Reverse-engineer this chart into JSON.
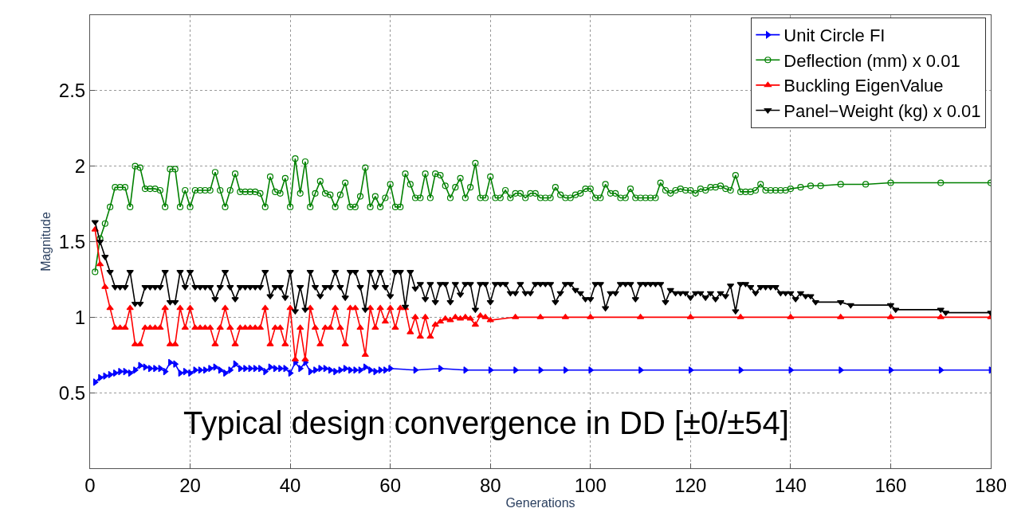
{
  "chart_data": {
    "type": "line",
    "xlabel": "Generations",
    "ylabel": "Magnitude",
    "xlim": [
      0,
      180
    ],
    "xticks": [
      0,
      20,
      40,
      60,
      80,
      100,
      120,
      140,
      160,
      180
    ],
    "ylim": [
      0,
      3
    ],
    "yticks": [
      0.5,
      1,
      1.5,
      2,
      2.5
    ],
    "grid": true,
    "legend": "top right",
    "line_style": "solid",
    "annotations": [
      "Typical design convergence in DD [±0/±54]"
    ],
    "series": [
      {
        "name": "Unit Circle FI",
        "color": "#0000ff",
        "marker": "triangle-right",
        "x": [
          1,
          2,
          3,
          4,
          5,
          6,
          7,
          8,
          9,
          10,
          11,
          12,
          13,
          14,
          15,
          16,
          17,
          18,
          19,
          20,
          21,
          22,
          23,
          24,
          25,
          26,
          27,
          28,
          29,
          30,
          31,
          32,
          33,
          34,
          35,
          36,
          37,
          38,
          39,
          40,
          41,
          42,
          43,
          44,
          45,
          46,
          47,
          48,
          49,
          50,
          51,
          52,
          53,
          54,
          55,
          56,
          57,
          58,
          59,
          60,
          65,
          70,
          75,
          80,
          85,
          90,
          95,
          100,
          110,
          120,
          130,
          140,
          150,
          160,
          170,
          180
        ],
        "values": [
          0.57,
          0.6,
          0.61,
          0.62,
          0.63,
          0.64,
          0.64,
          0.63,
          0.65,
          0.68,
          0.67,
          0.66,
          0.66,
          0.66,
          0.64,
          0.7,
          0.69,
          0.63,
          0.64,
          0.63,
          0.65,
          0.65,
          0.65,
          0.66,
          0.67,
          0.65,
          0.63,
          0.65,
          0.69,
          0.66,
          0.66,
          0.66,
          0.66,
          0.66,
          0.64,
          0.67,
          0.66,
          0.66,
          0.66,
          0.63,
          0.7,
          0.66,
          0.7,
          0.64,
          0.65,
          0.66,
          0.66,
          0.65,
          0.64,
          0.65,
          0.66,
          0.65,
          0.65,
          0.65,
          0.67,
          0.65,
          0.64,
          0.65,
          0.65,
          0.66,
          0.65,
          0.66,
          0.65,
          0.65,
          0.65,
          0.65,
          0.65,
          0.65,
          0.65,
          0.65,
          0.65,
          0.65,
          0.65,
          0.65,
          0.65,
          0.65
        ]
      },
      {
        "name": "Deflection (mm) x 0.01",
        "color": "#008000",
        "marker": "circle-open",
        "x": [
          1,
          2,
          3,
          4,
          5,
          6,
          7,
          8,
          9,
          10,
          11,
          12,
          13,
          14,
          15,
          16,
          17,
          18,
          19,
          20,
          21,
          22,
          23,
          24,
          25,
          26,
          27,
          28,
          29,
          30,
          31,
          32,
          33,
          34,
          35,
          36,
          37,
          38,
          39,
          40,
          41,
          42,
          43,
          44,
          45,
          46,
          47,
          48,
          49,
          50,
          51,
          52,
          53,
          54,
          55,
          56,
          57,
          58,
          59,
          60,
          61,
          62,
          63,
          64,
          65,
          66,
          67,
          68,
          69,
          70,
          71,
          72,
          73,
          74,
          75,
          76,
          77,
          78,
          79,
          80,
          81,
          82,
          83,
          84,
          85,
          86,
          87,
          88,
          89,
          90,
          91,
          92,
          93,
          94,
          95,
          96,
          97,
          98,
          99,
          100,
          101,
          102,
          103,
          104,
          105,
          106,
          107,
          108,
          109,
          110,
          111,
          112,
          113,
          114,
          115,
          116,
          117,
          118,
          119,
          120,
          121,
          122,
          123,
          124,
          125,
          126,
          127,
          128,
          129,
          130,
          131,
          132,
          133,
          134,
          135,
          136,
          137,
          138,
          139,
          140,
          142,
          144,
          146,
          150,
          155,
          160,
          170,
          180
        ],
        "values": [
          1.3,
          1.52,
          1.62,
          1.73,
          1.86,
          1.86,
          1.86,
          1.73,
          2.0,
          1.99,
          1.85,
          1.85,
          1.85,
          1.84,
          1.73,
          1.98,
          1.98,
          1.73,
          1.84,
          1.73,
          1.84,
          1.84,
          1.84,
          1.84,
          1.96,
          1.84,
          1.73,
          1.84,
          1.95,
          1.83,
          1.83,
          1.83,
          1.83,
          1.82,
          1.73,
          1.93,
          1.83,
          1.82,
          1.92,
          1.73,
          2.05,
          1.82,
          2.03,
          1.73,
          1.82,
          1.9,
          1.82,
          1.81,
          1.73,
          1.81,
          1.89,
          1.73,
          1.73,
          1.8,
          1.99,
          1.73,
          1.8,
          1.73,
          1.79,
          1.88,
          1.73,
          1.73,
          1.95,
          1.88,
          1.79,
          1.79,
          1.95,
          1.79,
          1.95,
          1.94,
          1.87,
          1.79,
          1.86,
          1.92,
          1.79,
          1.86,
          2.02,
          1.79,
          1.79,
          1.93,
          1.79,
          1.79,
          1.84,
          1.79,
          1.82,
          1.82,
          1.79,
          1.82,
          1.82,
          1.79,
          1.79,
          1.79,
          1.86,
          1.81,
          1.79,
          1.79,
          1.81,
          1.82,
          1.85,
          1.85,
          1.79,
          1.79,
          1.88,
          1.82,
          1.82,
          1.79,
          1.79,
          1.85,
          1.79,
          1.79,
          1.79,
          1.79,
          1.79,
          1.89,
          1.84,
          1.82,
          1.84,
          1.85,
          1.84,
          1.84,
          1.82,
          1.85,
          1.84,
          1.86,
          1.86,
          1.87,
          1.85,
          1.84,
          1.94,
          1.83,
          1.83,
          1.83,
          1.84,
          1.88,
          1.84,
          1.84,
          1.84,
          1.84,
          1.84,
          1.85,
          1.86,
          1.87,
          1.87,
          1.88,
          1.88,
          1.89,
          1.89,
          1.89
        ]
      },
      {
        "name": "Buckling EigenValue",
        "color": "#ff0000",
        "marker": "triangle-up",
        "x": [
          1,
          2,
          3,
          4,
          5,
          6,
          7,
          8,
          9,
          10,
          11,
          12,
          13,
          14,
          15,
          16,
          17,
          18,
          19,
          20,
          21,
          22,
          23,
          24,
          25,
          26,
          27,
          28,
          29,
          30,
          31,
          32,
          33,
          34,
          35,
          36,
          37,
          38,
          39,
          40,
          41,
          42,
          43,
          44,
          45,
          46,
          47,
          48,
          49,
          50,
          51,
          52,
          53,
          54,
          55,
          56,
          57,
          58,
          59,
          60,
          61,
          62,
          63,
          64,
          65,
          66,
          67,
          68,
          69,
          70,
          71,
          72,
          73,
          74,
          75,
          76,
          77,
          78,
          79,
          80,
          85,
          90,
          95,
          100,
          110,
          120,
          130,
          140,
          150,
          160,
          170,
          180
        ],
        "values": [
          1.58,
          1.35,
          1.2,
          1.06,
          0.93,
          0.93,
          0.93,
          1.06,
          0.82,
          0.82,
          0.93,
          0.93,
          0.93,
          0.93,
          1.06,
          0.82,
          0.82,
          1.06,
          0.93,
          1.06,
          0.93,
          0.93,
          0.93,
          0.93,
          0.82,
          0.93,
          1.06,
          0.93,
          0.82,
          0.93,
          0.93,
          0.93,
          0.93,
          0.93,
          1.06,
          0.82,
          0.93,
          0.93,
          0.82,
          1.06,
          0.72,
          0.93,
          0.72,
          1.06,
          0.93,
          0.82,
          0.93,
          0.93,
          1.06,
          0.93,
          0.82,
          1.06,
          1.06,
          0.93,
          0.75,
          1.06,
          0.93,
          1.06,
          0.97,
          1.06,
          0.93,
          1.06,
          1.06,
          0.9,
          1.0,
          0.87,
          1.0,
          0.87,
          0.95,
          0.97,
          0.99,
          0.98,
          1.0,
          0.99,
          1.0,
          0.99,
          0.95,
          1.01,
          1.0,
          0.98,
          1.0,
          1.0,
          1.0,
          1.0,
          1.0,
          1.0,
          1.0,
          1.0,
          1.0,
          1.0,
          1.0,
          1.0
        ]
      },
      {
        "name": "Panel−Weight (kg) x 0.01",
        "color": "#000000",
        "marker": "triangle-down",
        "x": [
          1,
          2,
          3,
          4,
          5,
          6,
          7,
          8,
          9,
          10,
          11,
          12,
          13,
          14,
          15,
          16,
          17,
          18,
          19,
          20,
          21,
          22,
          23,
          24,
          25,
          26,
          27,
          28,
          29,
          30,
          31,
          32,
          33,
          34,
          35,
          36,
          37,
          38,
          39,
          40,
          41,
          42,
          43,
          44,
          45,
          46,
          47,
          48,
          49,
          50,
          51,
          52,
          53,
          54,
          55,
          56,
          57,
          58,
          59,
          60,
          61,
          62,
          63,
          64,
          65,
          66,
          67,
          68,
          69,
          70,
          71,
          72,
          73,
          74,
          75,
          76,
          77,
          78,
          79,
          80,
          81,
          82,
          83,
          84,
          85,
          86,
          87,
          88,
          89,
          90,
          91,
          92,
          93,
          94,
          95,
          96,
          97,
          98,
          99,
          100,
          101,
          102,
          103,
          104,
          105,
          106,
          107,
          108,
          109,
          110,
          111,
          112,
          113,
          114,
          115,
          116,
          117,
          118,
          119,
          120,
          121,
          122,
          123,
          124,
          125,
          126,
          127,
          128,
          129,
          130,
          131,
          132,
          133,
          134,
          135,
          136,
          137,
          138,
          139,
          140,
          141,
          142,
          143,
          144,
          145,
          150,
          152,
          160,
          161,
          170,
          171,
          180
        ],
        "values": [
          1.63,
          1.5,
          1.4,
          1.3,
          1.2,
          1.2,
          1.2,
          1.3,
          1.09,
          1.09,
          1.2,
          1.2,
          1.2,
          1.2,
          1.3,
          1.1,
          1.1,
          1.3,
          1.2,
          1.3,
          1.2,
          1.2,
          1.2,
          1.2,
          1.12,
          1.2,
          1.3,
          1.2,
          1.12,
          1.2,
          1.2,
          1.2,
          1.2,
          1.2,
          1.3,
          1.14,
          1.2,
          1.2,
          1.13,
          1.3,
          1.04,
          1.2,
          1.05,
          1.3,
          1.2,
          1.14,
          1.2,
          1.2,
          1.3,
          1.2,
          1.13,
          1.3,
          1.3,
          1.2,
          1.05,
          1.3,
          1.2,
          1.3,
          1.2,
          1.14,
          1.3,
          1.3,
          1.07,
          1.3,
          1.19,
          1.22,
          1.12,
          1.22,
          1.1,
          1.22,
          1.22,
          1.1,
          1.22,
          1.15,
          1.22,
          1.22,
          1.05,
          1.22,
          1.22,
          1.1,
          1.22,
          1.22,
          1.22,
          1.16,
          1.16,
          1.22,
          1.16,
          1.16,
          1.22,
          1.22,
          1.22,
          1.22,
          1.1,
          1.16,
          1.22,
          1.22,
          1.18,
          1.16,
          1.12,
          1.12,
          1.22,
          1.22,
          1.06,
          1.16,
          1.16,
          1.22,
          1.22,
          1.22,
          1.12,
          1.22,
          1.22,
          1.22,
          1.22,
          1.22,
          1.1,
          1.18,
          1.16,
          1.16,
          1.16,
          1.13,
          1.16,
          1.16,
          1.13,
          1.16,
          1.12,
          1.16,
          1.14,
          1.21,
          1.04,
          1.22,
          1.22,
          1.2,
          1.16,
          1.2,
          1.2,
          1.2,
          1.2,
          1.16,
          1.16,
          1.16,
          1.12,
          1.16,
          1.14,
          1.14,
          1.1,
          1.1,
          1.08,
          1.08,
          1.05,
          1.05,
          1.03,
          1.03
        ]
      }
    ]
  }
}
